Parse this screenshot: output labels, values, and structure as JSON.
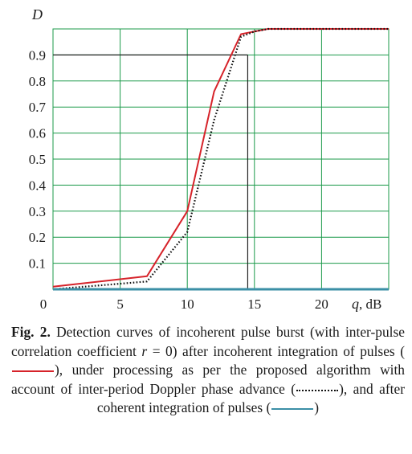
{
  "chart_data": {
    "type": "line",
    "ylabel": "D",
    "xlabel_var": "q",
    "xlabel_unit": ", dB",
    "xlim": [
      0,
      25
    ],
    "ylim": [
      0,
      1.0
    ],
    "x_ticks": [
      "0",
      "5",
      "10",
      "15",
      "20"
    ],
    "x_tick_values": [
      0,
      5,
      10,
      15,
      20
    ],
    "y_ticks": [
      "0.1",
      "0.2",
      "0.3",
      "0.4",
      "0.5",
      "0.6",
      "0.7",
      "0.8",
      "0.9"
    ],
    "y_tick_values": [
      0.1,
      0.2,
      0.3,
      0.4,
      0.5,
      0.6,
      0.7,
      0.8,
      0.9
    ],
    "grid": true,
    "reference": {
      "level": 0.9,
      "q": 14.5
    },
    "series": [
      {
        "style": "solid",
        "color": "#d6232a",
        "x": [
          0,
          7,
          10,
          12,
          14,
          15,
          16,
          25
        ],
        "y": [
          0.01,
          0.05,
          0.3,
          0.76,
          0.98,
          0.99,
          1.0,
          1.0
        ]
      },
      {
        "style": "dotted",
        "color": "#111111",
        "x": [
          0,
          7,
          10,
          12,
          14,
          15,
          16,
          25
        ],
        "y": [
          0.0,
          0.03,
          0.22,
          0.65,
          0.97,
          0.99,
          1.0,
          1.0
        ]
      },
      {
        "style": "solid",
        "color": "#3b8fa6",
        "x": [
          0,
          25
        ],
        "y": [
          0.0,
          0.0
        ]
      }
    ]
  },
  "caption": {
    "fig_label": "Fig. 2.",
    "part1": " Detection curves of incoherent pulse burst (with inter-pulse correlation coefficient ",
    "r_var": "r",
    "part2": " = 0) after incoherent integration of pulses (",
    "part3": "), under processing as per the proposed algorithm with account of inter-period Doppler phase advance (",
    "part4": "), and after coherent integration of pulses (",
    "part5": ")"
  }
}
